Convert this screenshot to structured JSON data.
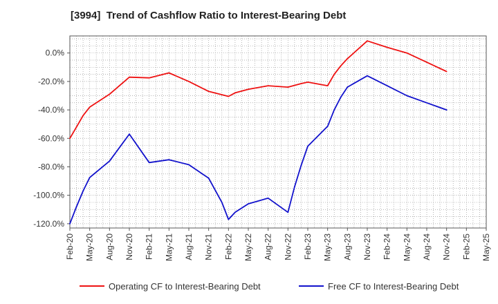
{
  "chart_data": {
    "type": "line",
    "title": "[3994]  Trend of Cashflow Ratio to Interest-Bearing Debt",
    "xlabel": "",
    "ylabel": "",
    "x_tick_labels": [
      "Feb-20",
      "May-20",
      "Aug-20",
      "Nov-20",
      "Feb-21",
      "May-21",
      "Aug-21",
      "Nov-21",
      "Feb-22",
      "May-22",
      "Aug-22",
      "Nov-22",
      "Feb-23",
      "May-23",
      "Aug-23",
      "Nov-23",
      "Feb-24",
      "May-24",
      "Aug-24",
      "Nov-24",
      "Feb-25",
      "May-25"
    ],
    "y_ticks": [
      0,
      -20,
      -40,
      -60,
      -80,
      -100,
      -120
    ],
    "y_tick_labels": [
      "0.0%",
      "-20.0%",
      "-40.0%",
      "-60.0%",
      "-80.0%",
      "-100.0%",
      "-120.0%"
    ],
    "ylim": [
      -123,
      12
    ],
    "xlim": [
      "Feb-20",
      "May-25"
    ],
    "grid": true,
    "legend_position": "bottom",
    "series": [
      {
        "name": "Operating CF to Interest-Bearing Debt",
        "color": "#ee1111",
        "points": [
          [
            "Feb-20",
            -60.0
          ],
          [
            "Mar-20",
            -52.0
          ],
          [
            "Apr-20",
            -44.0
          ],
          [
            "May-20",
            -38.0
          ],
          [
            "Aug-20",
            -29.0
          ],
          [
            "Nov-20",
            -17.0
          ],
          [
            "Feb-21",
            -17.5
          ],
          [
            "May-21",
            -14.0
          ],
          [
            "Aug-21",
            -20.0
          ],
          [
            "Nov-21",
            -27.0
          ],
          [
            "Feb-22",
            -30.5
          ],
          [
            "Mar-22",
            -28.0
          ],
          [
            "May-22",
            -25.5
          ],
          [
            "Aug-22",
            -23.0
          ],
          [
            "Nov-22",
            -24.0
          ],
          [
            "Jan-23",
            -21.5
          ],
          [
            "Feb-23",
            -20.5
          ],
          [
            "May-23",
            -23.0
          ],
          [
            "Jun-23",
            -15.0
          ],
          [
            "Jul-23",
            -9.0
          ],
          [
            "Aug-23",
            -4.0
          ],
          [
            "Nov-23",
            8.5
          ],
          [
            "Feb-24",
            4.0
          ],
          [
            "May-24",
            0.0
          ],
          [
            "Aug-24",
            -6.5
          ],
          [
            "Nov-24",
            -13.0
          ]
        ]
      },
      {
        "name": "Free CF to Interest-Bearing Debt",
        "color": "#1111cc",
        "points": [
          [
            "Feb-20",
            -120.0
          ],
          [
            "Mar-20",
            -108.0
          ],
          [
            "Apr-20",
            -97.0
          ],
          [
            "May-20",
            -87.5
          ],
          [
            "Aug-20",
            -76.0
          ],
          [
            "Nov-20",
            -57.0
          ],
          [
            "Feb-21",
            -77.0
          ],
          [
            "May-21",
            -75.0
          ],
          [
            "Aug-21",
            -78.5
          ],
          [
            "Nov-21",
            -88.0
          ],
          [
            "Jan-22",
            -105.0
          ],
          [
            "Feb-22",
            -117.0
          ],
          [
            "Mar-22",
            -112.0
          ],
          [
            "May-22",
            -106.0
          ],
          [
            "Aug-22",
            -102.0
          ],
          [
            "Nov-22",
            -112.0
          ],
          [
            "Dec-22",
            -94.0
          ],
          [
            "Jan-23",
            -79.0
          ],
          [
            "Feb-23",
            -65.5
          ],
          [
            "May-23",
            -51.5
          ],
          [
            "Jun-23",
            -40.0
          ],
          [
            "Jul-23",
            -31.0
          ],
          [
            "Aug-23",
            -24.0
          ],
          [
            "Nov-23",
            -16.0
          ],
          [
            "Feb-24",
            -23.0
          ],
          [
            "May-24",
            -30.0
          ],
          [
            "Aug-24",
            -35.0
          ],
          [
            "Nov-24",
            -40.0
          ]
        ]
      }
    ]
  }
}
